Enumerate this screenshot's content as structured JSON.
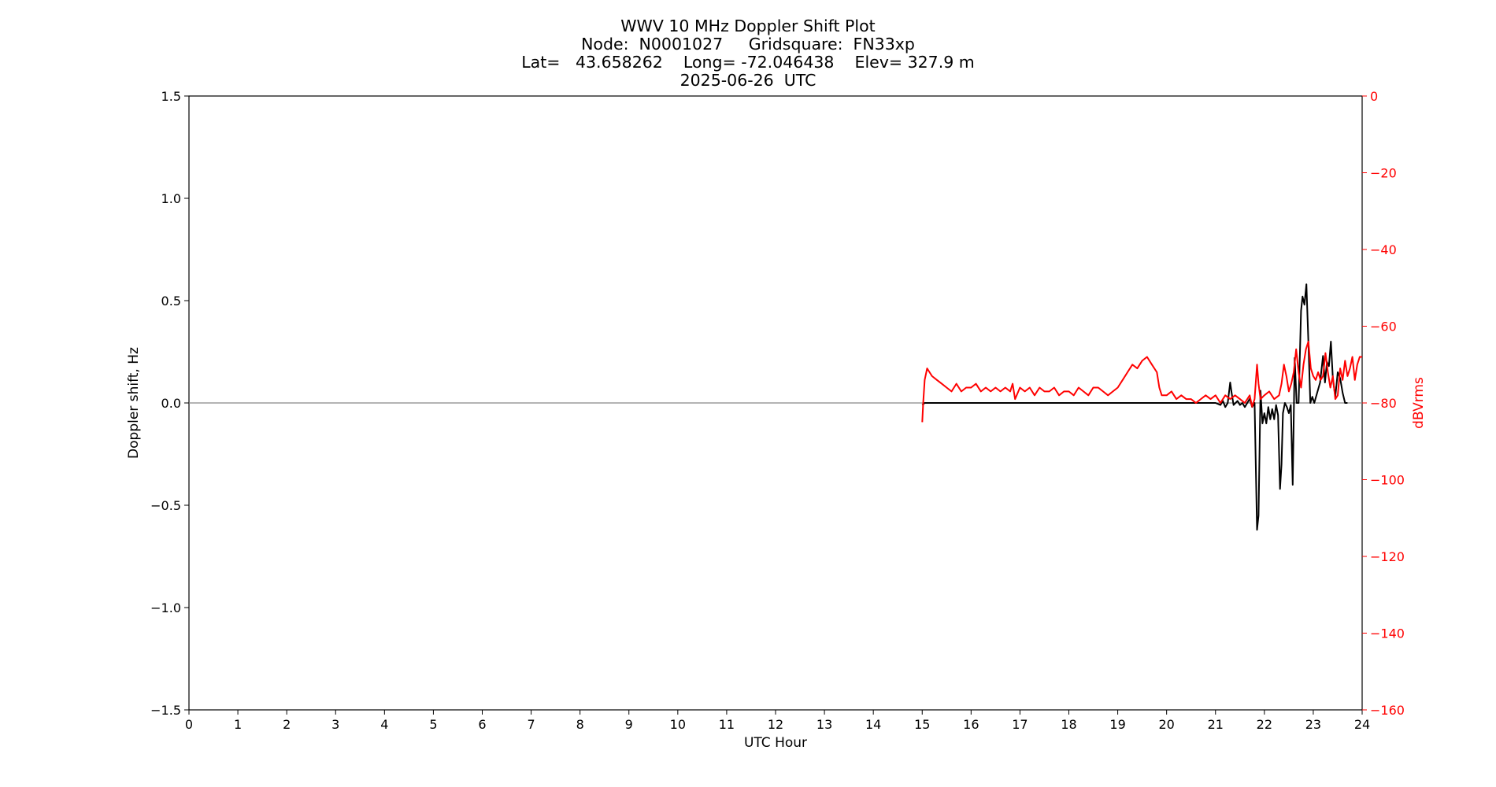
{
  "title_lines": [
    "WWV 10 MHz Doppler Shift Plot",
    "Node:  N0001027     Gridsquare:  FN33xp",
    "Lat=   43.658262    Long= -72.046438    Elev= 327.9 m",
    "2025-06-26  UTC"
  ],
  "chart_data": {
    "type": "line",
    "xlabel": "UTC Hour",
    "xlim": [
      0,
      24
    ],
    "x_ticks": [
      "0",
      "1",
      "2",
      "3",
      "4",
      "5",
      "6",
      "7",
      "8",
      "9",
      "10",
      "11",
      "12",
      "13",
      "14",
      "15",
      "16",
      "17",
      "18",
      "19",
      "20",
      "21",
      "22",
      "23",
      "24"
    ],
    "y_left": {
      "label": "Doppler shift, Hz",
      "lim": [
        -1.5,
        1.5
      ],
      "ticks": [
        "1.5",
        "1.0",
        "0.5",
        "0.0",
        "−0.5",
        "−1.0",
        "−1.5"
      ],
      "color": "#000000"
    },
    "y_right": {
      "label": "dBVrms",
      "lim": [
        -160,
        0
      ],
      "ticks": [
        "0",
        "−20",
        "−40",
        "−60",
        "−80",
        "−100",
        "−120",
        "−140",
        "−160"
      ],
      "color": "#ff0000"
    },
    "zero_line": {
      "y": 0.0,
      "color": "#888888"
    },
    "grid": false,
    "series": [
      {
        "axis": "left",
        "color": "#000000",
        "points": [
          [
            15.0,
            -0.01
          ],
          [
            15.05,
            0.0
          ],
          [
            16.0,
            0.0
          ],
          [
            17.0,
            0.0
          ],
          [
            18.0,
            0.0
          ],
          [
            19.0,
            0.0
          ],
          [
            20.0,
            0.0
          ],
          [
            20.9,
            0.0
          ],
          [
            21.0,
            0.0
          ],
          [
            21.1,
            -0.01
          ],
          [
            21.15,
            0.01
          ],
          [
            21.2,
            -0.02
          ],
          [
            21.25,
            0.0
          ],
          [
            21.3,
            0.1
          ],
          [
            21.33,
            0.05
          ],
          [
            21.37,
            -0.01
          ],
          [
            21.45,
            0.01
          ],
          [
            21.5,
            -0.01
          ],
          [
            21.55,
            0.0
          ],
          [
            21.6,
            -0.02
          ],
          [
            21.65,
            0.0
          ],
          [
            21.7,
            0.02
          ],
          [
            21.75,
            -0.02
          ],
          [
            21.8,
            0.0
          ],
          [
            21.85,
            -0.62
          ],
          [
            21.88,
            -0.55
          ],
          [
            21.92,
            0.06
          ],
          [
            21.96,
            -0.1
          ],
          [
            22.0,
            -0.05
          ],
          [
            22.04,
            -0.1
          ],
          [
            22.08,
            -0.02
          ],
          [
            22.12,
            -0.08
          ],
          [
            22.16,
            -0.03
          ],
          [
            22.2,
            -0.08
          ],
          [
            22.24,
            -0.01
          ],
          [
            22.28,
            -0.06
          ],
          [
            22.32,
            -0.42
          ],
          [
            22.35,
            -0.3
          ],
          [
            22.38,
            -0.05
          ],
          [
            22.42,
            0.0
          ],
          [
            22.46,
            -0.02
          ],
          [
            22.5,
            -0.05
          ],
          [
            22.54,
            -0.01
          ],
          [
            22.58,
            -0.4
          ],
          [
            22.62,
            0.22
          ],
          [
            22.66,
            0.0
          ],
          [
            22.7,
            0.0
          ],
          [
            22.75,
            0.45
          ],
          [
            22.78,
            0.52
          ],
          [
            22.82,
            0.48
          ],
          [
            22.86,
            0.58
          ],
          [
            22.9,
            0.3
          ],
          [
            22.94,
            0.0
          ],
          [
            22.98,
            0.03
          ],
          [
            23.02,
            0.0
          ],
          [
            23.08,
            0.05
          ],
          [
            23.14,
            0.1
          ],
          [
            23.2,
            0.23
          ],
          [
            23.24,
            0.1
          ],
          [
            23.28,
            0.2
          ],
          [
            23.32,
            0.18
          ],
          [
            23.36,
            0.3
          ],
          [
            23.4,
            0.12
          ],
          [
            23.45,
            0.03
          ],
          [
            23.5,
            0.15
          ],
          [
            23.55,
            0.12
          ],
          [
            23.6,
            0.05
          ],
          [
            23.65,
            0.0
          ],
          [
            23.7,
            0.0
          ]
        ]
      },
      {
        "axis": "right",
        "color": "#ff0000",
        "points": [
          [
            15.0,
            -85
          ],
          [
            15.02,
            -80
          ],
          [
            15.05,
            -74
          ],
          [
            15.1,
            -71
          ],
          [
            15.2,
            -73
          ],
          [
            15.3,
            -74
          ],
          [
            15.4,
            -75
          ],
          [
            15.5,
            -76
          ],
          [
            15.6,
            -77
          ],
          [
            15.7,
            -75
          ],
          [
            15.8,
            -77
          ],
          [
            15.9,
            -76
          ],
          [
            16.0,
            -76
          ],
          [
            16.1,
            -75
          ],
          [
            16.2,
            -77
          ],
          [
            16.3,
            -76
          ],
          [
            16.4,
            -77
          ],
          [
            16.5,
            -76
          ],
          [
            16.6,
            -77
          ],
          [
            16.7,
            -76
          ],
          [
            16.8,
            -77
          ],
          [
            16.85,
            -75
          ],
          [
            16.9,
            -79
          ],
          [
            17.0,
            -76
          ],
          [
            17.1,
            -77
          ],
          [
            17.2,
            -76
          ],
          [
            17.3,
            -78
          ],
          [
            17.4,
            -76
          ],
          [
            17.5,
            -77
          ],
          [
            17.6,
            -77
          ],
          [
            17.7,
            -76
          ],
          [
            17.8,
            -78
          ],
          [
            17.9,
            -77
          ],
          [
            18.0,
            -77
          ],
          [
            18.1,
            -78
          ],
          [
            18.2,
            -76
          ],
          [
            18.3,
            -77
          ],
          [
            18.4,
            -78
          ],
          [
            18.5,
            -76
          ],
          [
            18.6,
            -76
          ],
          [
            18.7,
            -77
          ],
          [
            18.8,
            -78
          ],
          [
            18.9,
            -77
          ],
          [
            19.0,
            -76
          ],
          [
            19.1,
            -74
          ],
          [
            19.2,
            -72
          ],
          [
            19.3,
            -70
          ],
          [
            19.4,
            -71
          ],
          [
            19.5,
            -69
          ],
          [
            19.6,
            -68
          ],
          [
            19.7,
            -70
          ],
          [
            19.8,
            -72
          ],
          [
            19.85,
            -76
          ],
          [
            19.9,
            -78
          ],
          [
            20.0,
            -78
          ],
          [
            20.1,
            -77
          ],
          [
            20.2,
            -79
          ],
          [
            20.3,
            -78
          ],
          [
            20.4,
            -79
          ],
          [
            20.5,
            -79
          ],
          [
            20.6,
            -80
          ],
          [
            20.7,
            -79
          ],
          [
            20.8,
            -78
          ],
          [
            20.9,
            -79
          ],
          [
            21.0,
            -78
          ],
          [
            21.1,
            -80
          ],
          [
            21.2,
            -78
          ],
          [
            21.3,
            -79
          ],
          [
            21.4,
            -78
          ],
          [
            21.5,
            -79
          ],
          [
            21.6,
            -80
          ],
          [
            21.7,
            -78
          ],
          [
            21.75,
            -81
          ],
          [
            21.8,
            -79
          ],
          [
            21.85,
            -70
          ],
          [
            21.88,
            -75
          ],
          [
            21.92,
            -79
          ],
          [
            22.0,
            -78
          ],
          [
            22.1,
            -77
          ],
          [
            22.2,
            -79
          ],
          [
            22.3,
            -78
          ],
          [
            22.35,
            -75
          ],
          [
            22.4,
            -70
          ],
          [
            22.45,
            -73
          ],
          [
            22.5,
            -77
          ],
          [
            22.55,
            -75
          ],
          [
            22.6,
            -72
          ],
          [
            22.65,
            -66
          ],
          [
            22.7,
            -72
          ],
          [
            22.75,
            -76
          ],
          [
            22.8,
            -70
          ],
          [
            22.85,
            -66
          ],
          [
            22.9,
            -64
          ],
          [
            22.95,
            -71
          ],
          [
            23.0,
            -73
          ],
          [
            23.05,
            -74
          ],
          [
            23.1,
            -72
          ],
          [
            23.15,
            -74
          ],
          [
            23.2,
            -73
          ],
          [
            23.25,
            -67
          ],
          [
            23.3,
            -72
          ],
          [
            23.35,
            -76
          ],
          [
            23.4,
            -73
          ],
          [
            23.45,
            -79
          ],
          [
            23.5,
            -78
          ],
          [
            23.55,
            -71
          ],
          [
            23.6,
            -74
          ],
          [
            23.65,
            -69
          ],
          [
            23.7,
            -73
          ],
          [
            23.75,
            -71
          ],
          [
            23.8,
            -68
          ],
          [
            23.85,
            -74
          ],
          [
            23.9,
            -70
          ],
          [
            23.95,
            -68
          ],
          [
            24.0,
            -68
          ]
        ]
      }
    ]
  }
}
